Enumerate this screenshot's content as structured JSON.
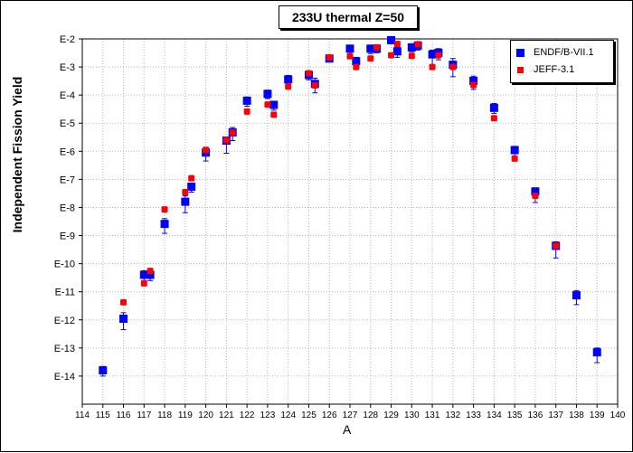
{
  "chart_data": {
    "type": "scatter",
    "title": "233U thermal Z=50",
    "xlabel": "A",
    "ylabel": "Independent Fission Yield",
    "xlim": [
      114,
      140
    ],
    "ylog": true,
    "ylim": [
      1e-15,
      0.01
    ],
    "x_ticks": [
      114,
      115,
      116,
      117,
      118,
      119,
      120,
      121,
      122,
      123,
      124,
      125,
      126,
      127,
      128,
      129,
      130,
      131,
      132,
      133,
      134,
      135,
      136,
      137,
      138,
      139,
      140
    ],
    "y_tick_labels": [
      "E-2",
      "E-3",
      "E-4",
      "E-5",
      "E-6",
      "E-7",
      "E-8",
      "E-9",
      "E-10",
      "E-11",
      "E-12",
      "E-13",
      "E-14"
    ],
    "y_tick_exponents": [
      -2,
      -3,
      -4,
      -5,
      -6,
      -7,
      -8,
      -9,
      -10,
      -11,
      -12,
      -13,
      -14
    ],
    "grid": true,
    "legend_position": "top-right",
    "series": [
      {
        "name": "ENDF/B-VII.1",
        "marker": "square",
        "color": "#0000ff",
        "points": [
          {
            "x": 115,
            "y": 1.6e-14,
            "err": [
              1e-14,
              2.2e-14
            ]
          },
          {
            "x": 116,
            "y": 1.1e-12,
            "err": [
              4.5e-13,
              1.8e-12
            ]
          },
          {
            "x": 117,
            "y": 4e-11,
            "err": [
              2.5e-11,
              5.6e-11
            ]
          },
          {
            "x": 117.3,
            "y": 4e-11,
            "err": [
              2.5e-11,
              5.6e-11
            ]
          },
          {
            "x": 118,
            "y": 2.6e-09,
            "err": [
              1.2e-09,
              4e-09
            ]
          },
          {
            "x": 119,
            "y": 1.6e-08,
            "err": [
              6.5e-09,
              2.6e-08
            ]
          },
          {
            "x": 119.3,
            "y": 5.5e-08,
            "err": [
              3.5e-08,
              7e-08
            ]
          },
          {
            "x": 120,
            "y": 9e-07,
            "err": [
              4.5e-07,
              1.4e-06
            ]
          },
          {
            "x": 121,
            "y": 2.4e-06,
            "err": [
              8.5e-07,
              3.2e-06
            ]
          },
          {
            "x": 121.3,
            "y": 4.7e-06,
            "err": [
              2.4e-06,
              7e-06
            ]
          },
          {
            "x": 122,
            "y": 6.3e-05,
            "err": [
              4e-05,
              8.5e-05
            ]
          },
          {
            "x": 123,
            "y": 0.00011,
            "err": [
              7.5e-05,
              0.00015
            ]
          },
          {
            "x": 123.3,
            "y": 4.5e-05,
            "err": [
              2.9e-05,
              6e-05
            ]
          },
          {
            "x": 124,
            "y": 0.00036,
            "err": [
              0.00024,
              0.0005
            ]
          },
          {
            "x": 125,
            "y": 0.00052,
            "err": [
              0.00035,
              0.0007
            ]
          },
          {
            "x": 125.3,
            "y": 0.00025,
            "err": [
              0.00012,
              0.0004
            ]
          },
          {
            "x": 126,
            "y": 0.002,
            "err": [
              0.0018,
              0.0022
            ]
          },
          {
            "x": 127,
            "y": 0.0045,
            "err": [
              0.003,
              0.0058
            ]
          },
          {
            "x": 127.3,
            "y": 0.0016,
            "err": [
              0.0009,
              0.0022
            ]
          },
          {
            "x": 128,
            "y": 0.0045,
            "err": [
              0.003,
              0.0058
            ]
          },
          {
            "x": 128.3,
            "y": 0.0045,
            "err": [
              0.0032,
              0.0058
            ]
          },
          {
            "x": 129,
            "y": 0.009,
            "err": [
              0.007,
              0.011
            ]
          },
          {
            "x": 129.3,
            "y": 0.0036,
            "err": [
              0.0022,
              0.005
            ]
          },
          {
            "x": 130,
            "y": 0.005,
            "err": [
              0.0035,
              0.0065
            ]
          },
          {
            "x": 130.3,
            "y": 0.0058,
            "err": [
              0.004,
              0.0075
            ]
          },
          {
            "x": 131,
            "y": 0.0028,
            "err": [
              0.0012,
              0.004
            ]
          },
          {
            "x": 131.3,
            "y": 0.0032,
            "err": [
              0.0018,
              0.0045
            ]
          },
          {
            "x": 132,
            "y": 0.0012,
            "err": [
              0.00045,
              0.002
            ]
          },
          {
            "x": 133,
            "y": 0.00032,
            "err": [
              0.00016,
              0.00047
            ]
          },
          {
            "x": 134,
            "y": 3.5e-05,
            "err": [
              2.2e-05,
              5e-05
            ]
          },
          {
            "x": 135,
            "y": 1.1e-06,
            "err": [
              6.5e-07,
              1.5e-06
            ]
          },
          {
            "x": 136,
            "y": 3.7e-08,
            "err": [
              1.5e-08,
              5e-08
            ]
          },
          {
            "x": 137,
            "y": 4.3e-10,
            "err": [
              1.6e-10,
              6e-10
            ]
          },
          {
            "x": 138,
            "y": 7.5e-12,
            "err": [
              3.5e-12,
              1.1e-11
            ]
          },
          {
            "x": 139,
            "y": 7e-14,
            "err": [
              3e-14,
              1e-13
            ]
          }
        ]
      },
      {
        "name": "JEFF-3.1",
        "marker": "square",
        "color": "#ff0000",
        "points": [
          {
            "x": 116,
            "y": 4.2e-12
          },
          {
            "x": 117,
            "y": 2e-11
          },
          {
            "x": 117.3,
            "y": 5.5e-11
          },
          {
            "x": 118,
            "y": 8.5e-09
          },
          {
            "x": 119,
            "y": 3.5e-08
          },
          {
            "x": 119.3,
            "y": 1.1e-07
          },
          {
            "x": 120,
            "y": 1.1e-06
          },
          {
            "x": 121,
            "y": 2.5e-06
          },
          {
            "x": 121.3,
            "y": 4.6e-06
          },
          {
            "x": 122,
            "y": 2.6e-05
          },
          {
            "x": 123,
            "y": 4.6e-05
          },
          {
            "x": 123.3,
            "y": 2e-05
          },
          {
            "x": 124,
            "y": 0.0002
          },
          {
            "x": 125,
            "y": 0.0006
          },
          {
            "x": 125.3,
            "y": 0.00022
          },
          {
            "x": 126,
            "y": 0.0022
          },
          {
            "x": 127,
            "y": 0.0024
          },
          {
            "x": 127.3,
            "y": 0.001
          },
          {
            "x": 128,
            "y": 0.002
          },
          {
            "x": 128.3,
            "y": 0.005
          },
          {
            "x": 129,
            "y": 0.0026
          },
          {
            "x": 129.3,
            "y": 0.0066
          },
          {
            "x": 130,
            "y": 0.0025
          },
          {
            "x": 130.3,
            "y": 0.0065
          },
          {
            "x": 131,
            "y": 0.001
          },
          {
            "x": 131.3,
            "y": 0.0026
          },
          {
            "x": 132,
            "y": 0.001
          },
          {
            "x": 133,
            "y": 0.00023
          },
          {
            "x": 134,
            "y": 1.5e-05
          },
          {
            "x": 135,
            "y": 5.5e-07
          },
          {
            "x": 136,
            "y": 2.6e-08
          },
          {
            "x": 137,
            "y": 4.3e-10
          }
        ]
      }
    ]
  }
}
